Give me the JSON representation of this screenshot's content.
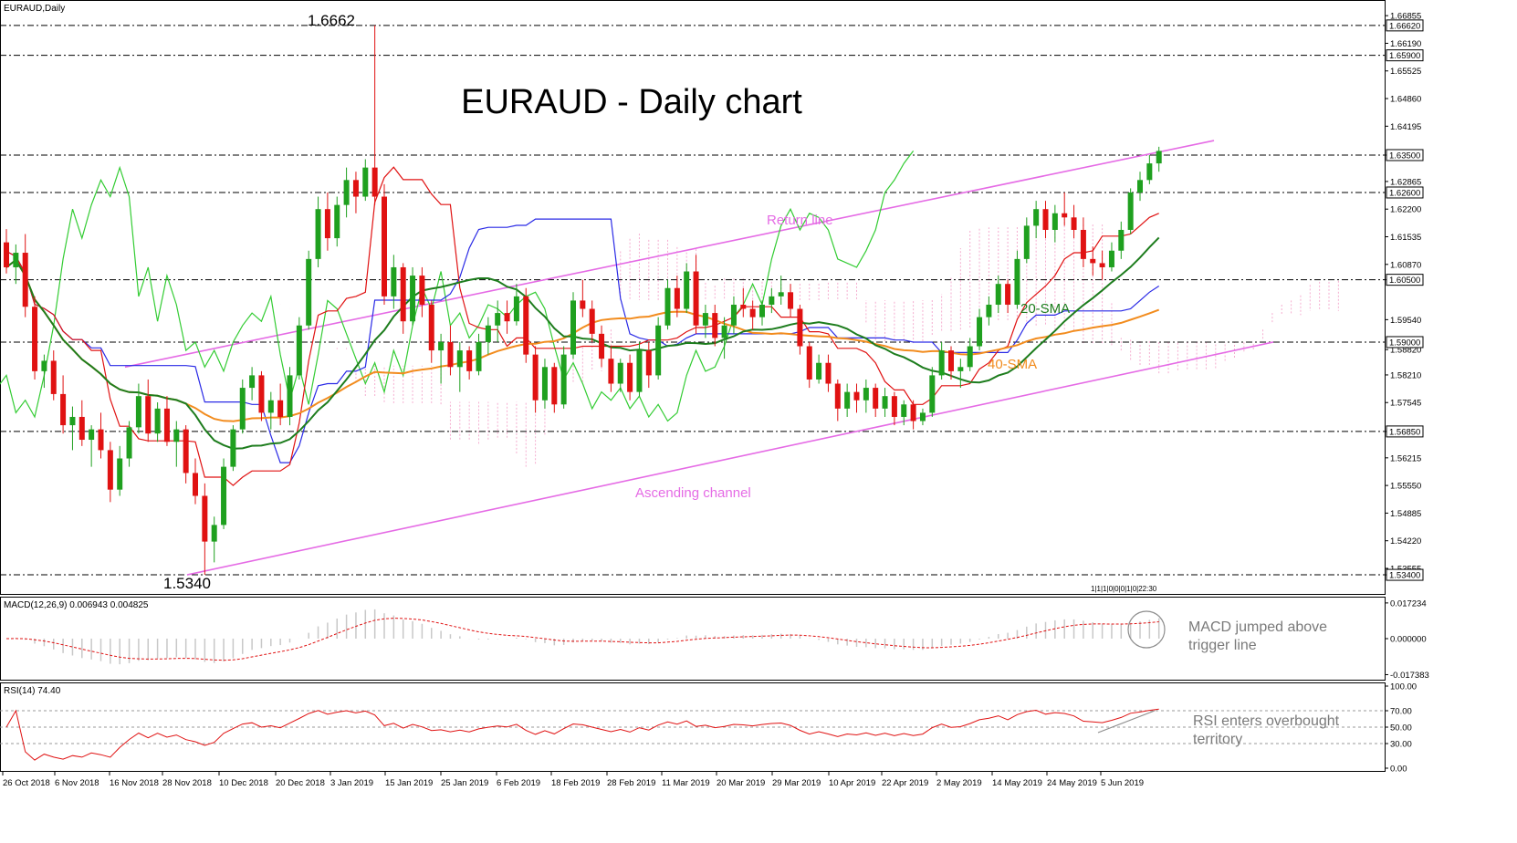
{
  "chart_data": [
    {
      "type": "candlestick",
      "symbol_label": "EURAUD,Daily",
      "title": "EURAUD - Daily chart",
      "price_axis": {
        "ylim": [
          1.5305,
          1.671
        ],
        "ticks": [
          "1.66855",
          "1.66190",
          "1.65525",
          "1.64860",
          "1.64195",
          "1.63500",
          "1.62865",
          "1.62200",
          "1.61535",
          "1.60870",
          "1.60500",
          "1.59540",
          "1.58820",
          "1.58210",
          "1.57545",
          "1.56850",
          "1.56215",
          "1.55550",
          "1.54885",
          "1.54220",
          "1.53555",
          "1.53400"
        ]
      },
      "horizontal_levels": [
        {
          "label": "1.66620",
          "value": 1.6662
        },
        {
          "label": "1.65900",
          "value": 1.659
        },
        {
          "label": "1.63500",
          "value": 1.635
        },
        {
          "label": "1.62600",
          "value": 1.626
        },
        {
          "label": "1.60500",
          "value": 1.605
        },
        {
          "label": "1.59000",
          "value": 1.59
        },
        {
          "label": "1.56850",
          "value": 1.5685
        },
        {
          "label": "1.53400",
          "value": 1.534
        }
      ],
      "x_axis_labels": [
        "26 Oct 2018",
        "6 Nov 2018",
        "16 Nov 2018",
        "28 Nov 2018",
        "10 Dec 2018",
        "20 Dec 2018",
        "3 Jan 2019",
        "15 Jan 2019",
        "25 Jan 2019",
        "6 Feb 2019",
        "18 Feb 2019",
        "28 Feb 2019",
        "11 Mar 2019",
        "20 Mar 2019",
        "29 Mar 2019",
        "10 Apr 2019",
        "22 Apr 2019",
        "2 May 2019",
        "14 May 2019",
        "24 May 2019",
        "5 Jun 2019"
      ],
      "annotations": {
        "high_label": "1.6662",
        "low_label": "1.5340",
        "return_line": "Return line",
        "ascending_channel": "Ascending channel",
        "sma20": "20-SMA",
        "sma40": "40-SMA",
        "time_stamp": "1|1|1|0|0|0|1|0|22:30"
      },
      "series": [
        {
          "name": "20-SMA",
          "color": "#1e7d1e"
        },
        {
          "name": "40-SMA",
          "color": "#f28c1e"
        }
      ],
      "candles": [
        [
          1.614,
          1.6172,
          1.6065,
          1.608
        ],
        [
          1.608,
          1.6135,
          1.604,
          1.6115
        ],
        [
          1.6115,
          1.616,
          1.596,
          1.5985
        ],
        [
          1.5985,
          1.601,
          1.581,
          1.583
        ],
        [
          1.583,
          1.587,
          1.579,
          1.5855
        ],
        [
          1.5855,
          1.588,
          1.576,
          1.5775
        ],
        [
          1.5775,
          1.582,
          1.568,
          1.57
        ],
        [
          1.57,
          1.5745,
          1.564,
          1.572
        ],
        [
          1.572,
          1.576,
          1.565,
          1.5665
        ],
        [
          1.5665,
          1.57,
          1.56,
          1.569
        ],
        [
          1.569,
          1.573,
          1.562,
          1.564
        ],
        [
          1.564,
          1.566,
          1.5515,
          1.5545
        ],
        [
          1.5545,
          1.565,
          1.553,
          1.562
        ],
        [
          1.562,
          1.571,
          1.56,
          1.5695
        ],
        [
          1.5695,
          1.58,
          1.568,
          1.577
        ],
        [
          1.577,
          1.581,
          1.566,
          1.568
        ],
        [
          1.568,
          1.5755,
          1.566,
          1.574
        ],
        [
          1.574,
          1.577,
          1.565,
          1.566
        ],
        [
          1.566,
          1.571,
          1.56,
          1.569
        ],
        [
          1.569,
          1.57,
          1.556,
          1.5585
        ],
        [
          1.5585,
          1.562,
          1.551,
          1.553
        ],
        [
          1.553,
          1.556,
          1.534,
          1.542
        ],
        [
          1.542,
          1.548,
          1.537,
          1.546
        ],
        [
          1.546,
          1.562,
          1.545,
          1.56
        ],
        [
          1.56,
          1.57,
          1.559,
          1.569
        ],
        [
          1.569,
          1.581,
          1.568,
          1.579
        ],
        [
          1.579,
          1.584,
          1.576,
          1.582
        ],
        [
          1.582,
          1.583,
          1.571,
          1.573
        ],
        [
          1.573,
          1.578,
          1.569,
          1.576
        ],
        [
          1.576,
          1.58,
          1.57,
          1.572
        ],
        [
          1.572,
          1.584,
          1.57,
          1.582
        ],
        [
          1.582,
          1.596,
          1.581,
          1.594
        ],
        [
          1.594,
          1.612,
          1.593,
          1.61
        ],
        [
          1.61,
          1.625,
          1.608,
          1.622
        ],
        [
          1.622,
          1.626,
          1.612,
          1.615
        ],
        [
          1.615,
          1.625,
          1.613,
          1.623
        ],
        [
          1.623,
          1.632,
          1.62,
          1.629
        ],
        [
          1.629,
          1.631,
          1.621,
          1.625
        ],
        [
          1.625,
          1.634,
          1.624,
          1.632
        ],
        [
          1.632,
          1.6662,
          1.623,
          1.625
        ],
        [
          1.625,
          1.628,
          1.599,
          1.601
        ],
        [
          1.601,
          1.611,
          1.598,
          1.608
        ],
        [
          1.608,
          1.609,
          1.592,
          1.595
        ],
        [
          1.595,
          1.608,
          1.594,
          1.606
        ],
        [
          1.606,
          1.608,
          1.596,
          1.599
        ],
        [
          1.599,
          1.6,
          1.585,
          1.588
        ],
        [
          1.588,
          1.592,
          1.58,
          1.59
        ],
        [
          1.59,
          1.594,
          1.582,
          1.584
        ],
        [
          1.584,
          1.59,
          1.578,
          1.588
        ],
        [
          1.588,
          1.589,
          1.581,
          1.583
        ],
        [
          1.583,
          1.592,
          1.582,
          1.59
        ],
        [
          1.59,
          1.596,
          1.587,
          1.594
        ],
        [
          1.594,
          1.6,
          1.59,
          1.597
        ],
        [
          1.597,
          1.6,
          1.592,
          1.595
        ],
        [
          1.595,
          1.604,
          1.594,
          1.601
        ],
        [
          1.601,
          1.603,
          1.585,
          1.587
        ],
        [
          1.587,
          1.589,
          1.573,
          1.576
        ],
        [
          1.576,
          1.586,
          1.574,
          1.584
        ],
        [
          1.584,
          1.585,
          1.573,
          1.575
        ],
        [
          1.575,
          1.589,
          1.574,
          1.587
        ],
        [
          1.587,
          1.602,
          1.586,
          1.6
        ],
        [
          1.6,
          1.605,
          1.596,
          1.598
        ],
        [
          1.598,
          1.6,
          1.59,
          1.592
        ],
        [
          1.592,
          1.594,
          1.584,
          1.586
        ],
        [
          1.586,
          1.589,
          1.578,
          1.58
        ],
        [
          1.58,
          1.586,
          1.578,
          1.585
        ],
        [
          1.585,
          1.587,
          1.576,
          1.578
        ],
        [
          1.578,
          1.59,
          1.577,
          1.588
        ],
        [
          1.588,
          1.59,
          1.579,
          1.582
        ],
        [
          1.582,
          1.596,
          1.581,
          1.594
        ],
        [
          1.594,
          1.605,
          1.593,
          1.603
        ],
        [
          1.603,
          1.606,
          1.596,
          1.598
        ],
        [
          1.598,
          1.609,
          1.597,
          1.607
        ],
        [
          1.607,
          1.611,
          1.592,
          1.594
        ],
        [
          1.594,
          1.599,
          1.591,
          1.597
        ],
        [
          1.597,
          1.599,
          1.589,
          1.591
        ],
        [
          1.591,
          1.596,
          1.586,
          1.594
        ],
        [
          1.594,
          1.601,
          1.592,
          1.599
        ],
        [
          1.599,
          1.603,
          1.596,
          1.598
        ],
        [
          1.598,
          1.6,
          1.593,
          1.596
        ],
        [
          1.596,
          1.6,
          1.594,
          1.599
        ],
        [
          1.599,
          1.603,
          1.597,
          1.601
        ],
        [
          1.601,
          1.606,
          1.599,
          1.602
        ],
        [
          1.602,
          1.604,
          1.596,
          1.598
        ],
        [
          1.598,
          1.599,
          1.587,
          1.589
        ],
        [
          1.589,
          1.59,
          1.579,
          1.581
        ],
        [
          1.581,
          1.587,
          1.58,
          1.585
        ],
        [
          1.585,
          1.587,
          1.578,
          1.58
        ],
        [
          1.58,
          1.581,
          1.571,
          1.574
        ],
        [
          1.574,
          1.58,
          1.572,
          1.578
        ],
        [
          1.578,
          1.58,
          1.573,
          1.576
        ],
        [
          1.576,
          1.581,
          1.573,
          1.579
        ],
        [
          1.579,
          1.58,
          1.572,
          1.574
        ],
        [
          1.574,
          1.579,
          1.572,
          1.577
        ],
        [
          1.577,
          1.578,
          1.57,
          1.572
        ],
        [
          1.572,
          1.576,
          1.57,
          1.575
        ],
        [
          1.575,
          1.576,
          1.569,
          1.571
        ],
        [
          1.571,
          1.574,
          1.57,
          1.573
        ],
        [
          1.573,
          1.584,
          1.572,
          1.582
        ],
        [
          1.582,
          1.59,
          1.581,
          1.588
        ],
        [
          1.588,
          1.589,
          1.581,
          1.583
        ],
        [
          1.583,
          1.586,
          1.579,
          1.584
        ],
        [
          1.584,
          1.591,
          1.583,
          1.589
        ],
        [
          1.589,
          1.598,
          1.588,
          1.596
        ],
        [
          1.596,
          1.601,
          1.594,
          1.599
        ],
        [
          1.599,
          1.606,
          1.597,
          1.604
        ],
        [
          1.604,
          1.605,
          1.597,
          1.599
        ],
        [
          1.599,
          1.612,
          1.598,
          1.61
        ],
        [
          1.61,
          1.62,
          1.609,
          1.618
        ],
        [
          1.618,
          1.624,
          1.615,
          1.622
        ],
        [
          1.622,
          1.624,
          1.615,
          1.617
        ],
        [
          1.617,
          1.623,
          1.614,
          1.621
        ],
        [
          1.621,
          1.626,
          1.618,
          1.62
        ],
        [
          1.62,
          1.623,
          1.615,
          1.617
        ],
        [
          1.617,
          1.62,
          1.608,
          1.61
        ],
        [
          1.61,
          1.613,
          1.606,
          1.609
        ],
        [
          1.609,
          1.612,
          1.605,
          1.608
        ],
        [
          1.608,
          1.614,
          1.607,
          1.612
        ],
        [
          1.612,
          1.619,
          1.61,
          1.617
        ],
        [
          1.617,
          1.627,
          1.616,
          1.626
        ],
        [
          1.626,
          1.631,
          1.624,
          1.629
        ],
        [
          1.629,
          1.635,
          1.628,
          1.633
        ],
        [
          1.633,
          1.637,
          1.631,
          1.636
        ]
      ]
    },
    {
      "type": "line",
      "name": "MACD",
      "header": "MACD(12,26,9) 0.006943 0.004825",
      "ticks": [
        "0.017234",
        "0.000000",
        "-0.017383"
      ],
      "ylim": [
        -0.0185,
        0.0185
      ],
      "annotation": "MACD jumped above trigger line"
    },
    {
      "type": "line",
      "name": "RSI",
      "header": "RSI(14) 74.40",
      "ticks": [
        "100.00",
        "70.00",
        "50.00",
        "30.00",
        "0.00"
      ],
      "ylim": [
        0,
        100
      ],
      "levels": [
        70,
        50,
        30
      ],
      "annotation": "RSI enters overbought territory"
    }
  ],
  "colors": {
    "bull": "#1fa01f",
    "bear": "#e01212",
    "sma20": "#1e7d1e",
    "sma40": "#f28c1e",
    "tenkan": "#e01212",
    "kijun": "#2a2ae6",
    "chikou": "#33cc33",
    "cloud": "#f4a0c8",
    "channel": "#e56be5",
    "macd": "#c8c8c8",
    "signal": "#e01212",
    "rsi": "#e01212"
  }
}
